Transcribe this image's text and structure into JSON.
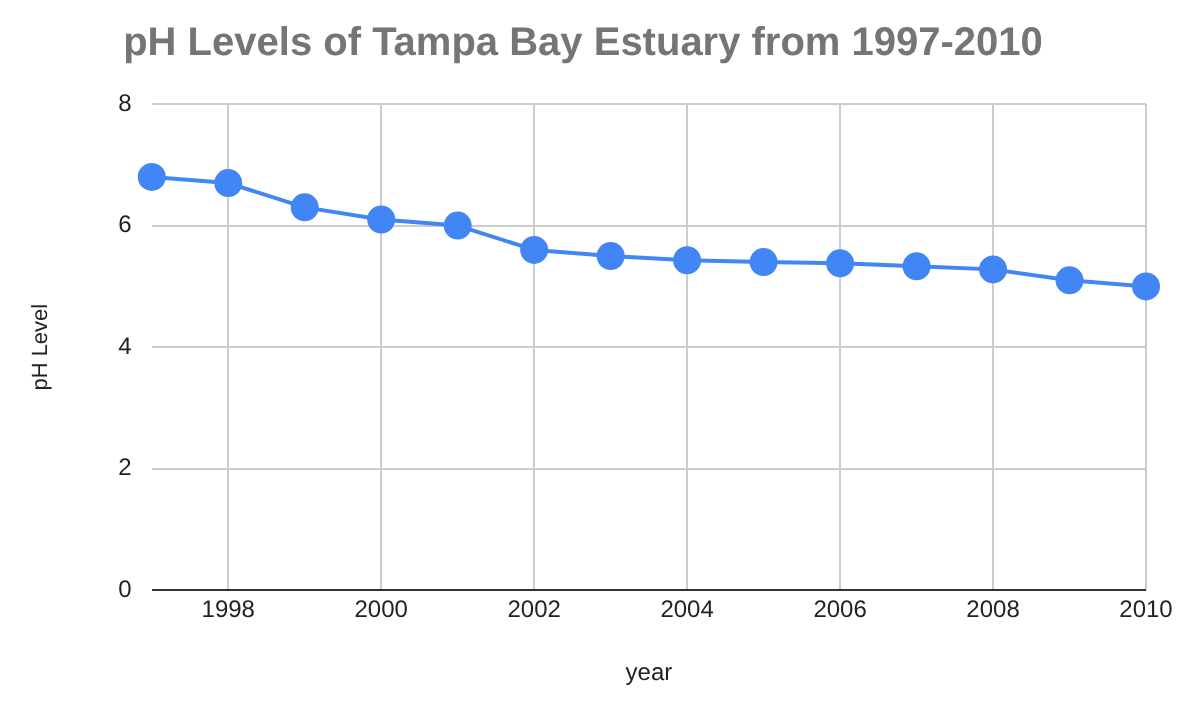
{
  "chart_data": {
    "type": "line",
    "title": "pH Levels of Tampa Bay Estuary from 1997-2010",
    "xlabel": "year",
    "ylabel": "pH Level",
    "x": [
      1997,
      1998,
      1999,
      2000,
      2001,
      2002,
      2003,
      2004,
      2005,
      2006,
      2007,
      2008,
      2009,
      2010
    ],
    "series": [
      {
        "color": "#4285f4",
        "values": [
          6.8,
          6.7,
          6.3,
          6.1,
          6.0,
          5.6,
          5.5,
          5.43,
          5.4,
          5.38,
          5.33,
          5.28,
          5.1,
          5.0
        ]
      }
    ],
    "xlim": [
      1997,
      2010
    ],
    "xticks": [
      1998,
      2000,
      2002,
      2004,
      2006,
      2008,
      2010
    ],
    "ylim": [
      0,
      8
    ],
    "yticks": [
      0,
      2,
      4,
      6,
      8
    ],
    "grid": true,
    "legend": false,
    "marker": "circle",
    "line_style": "solid"
  }
}
